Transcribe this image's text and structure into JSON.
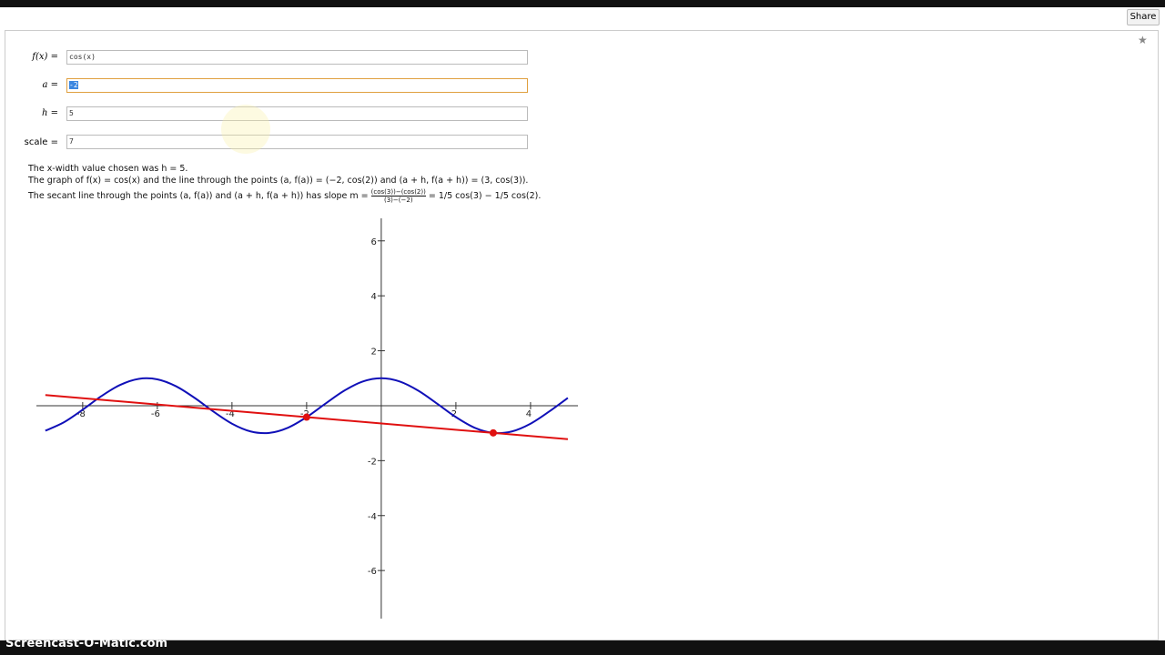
{
  "toolbar": {
    "share": "Share"
  },
  "form": [
    {
      "label": "f(x) =",
      "value": "cos(x)"
    },
    {
      "label": "a =",
      "value": "-2"
    },
    {
      "label": "h =",
      "value": "5"
    },
    {
      "label": "scale =",
      "value": "7"
    }
  ],
  "text": {
    "line1": "The x-width value chosen was h = 5.",
    "line2": "The graph of f(x) = cos(x) and the line through the points (a, f(a)) = (−2, cos(2)) and (a + h, f(a + h)) = (3, cos(3)).",
    "line3_prefix": "The secant line through the points (a, f(a)) and (a + h, f(a + h)) has slope m =",
    "line3_numerator": "(cos(3))−(cos(2))",
    "line3_denominator": "(3)−(−2)",
    "line3_suffix": "= 1/5 cos(3) − 1/5 cos(2)."
  },
  "watermark": "Screencast-O-Matic.com",
  "chart_data": {
    "type": "line",
    "xlim": [
      -9.24,
      5.27
    ],
    "ylim": [
      -7.75,
      6.82
    ],
    "xticks": [
      -8,
      -6,
      -4,
      -2,
      2,
      4
    ],
    "yticks": [
      -6,
      -4,
      -2,
      2,
      4,
      6
    ],
    "series": [
      {
        "name": "cos(x)",
        "color": "#1010b8",
        "mode": "line",
        "x": [
          -9,
          -8.5,
          -8,
          -7.5,
          -7,
          -6.5,
          -6,
          -5.5,
          -5,
          -4.5,
          -4,
          -3.5,
          -3,
          -2.5,
          -2,
          -1.5,
          -1,
          -0.5,
          0,
          0.5,
          1,
          1.5,
          2,
          2.5,
          3,
          3.5,
          4,
          4.5,
          5
        ],
        "values": [
          -0.911,
          -0.602,
          -0.146,
          0.347,
          0.754,
          0.977,
          0.96,
          0.709,
          0.284,
          -0.211,
          -0.654,
          -0.936,
          -0.99,
          -0.801,
          -0.416,
          0.071,
          0.54,
          0.878,
          1,
          0.878,
          0.54,
          0.071,
          -0.416,
          -0.801,
          -0.99,
          -0.936,
          -0.654,
          -0.211,
          0.284
        ]
      },
      {
        "name": "secant",
        "color": "#e01010",
        "mode": "line",
        "x": [
          -9,
          5
        ],
        "values": [
          0.388,
          -1.22
        ]
      },
      {
        "name": "points",
        "color": "#e01010",
        "mode": "points",
        "x": [
          -2,
          3
        ],
        "values": [
          -0.416,
          -0.99
        ]
      }
    ]
  }
}
